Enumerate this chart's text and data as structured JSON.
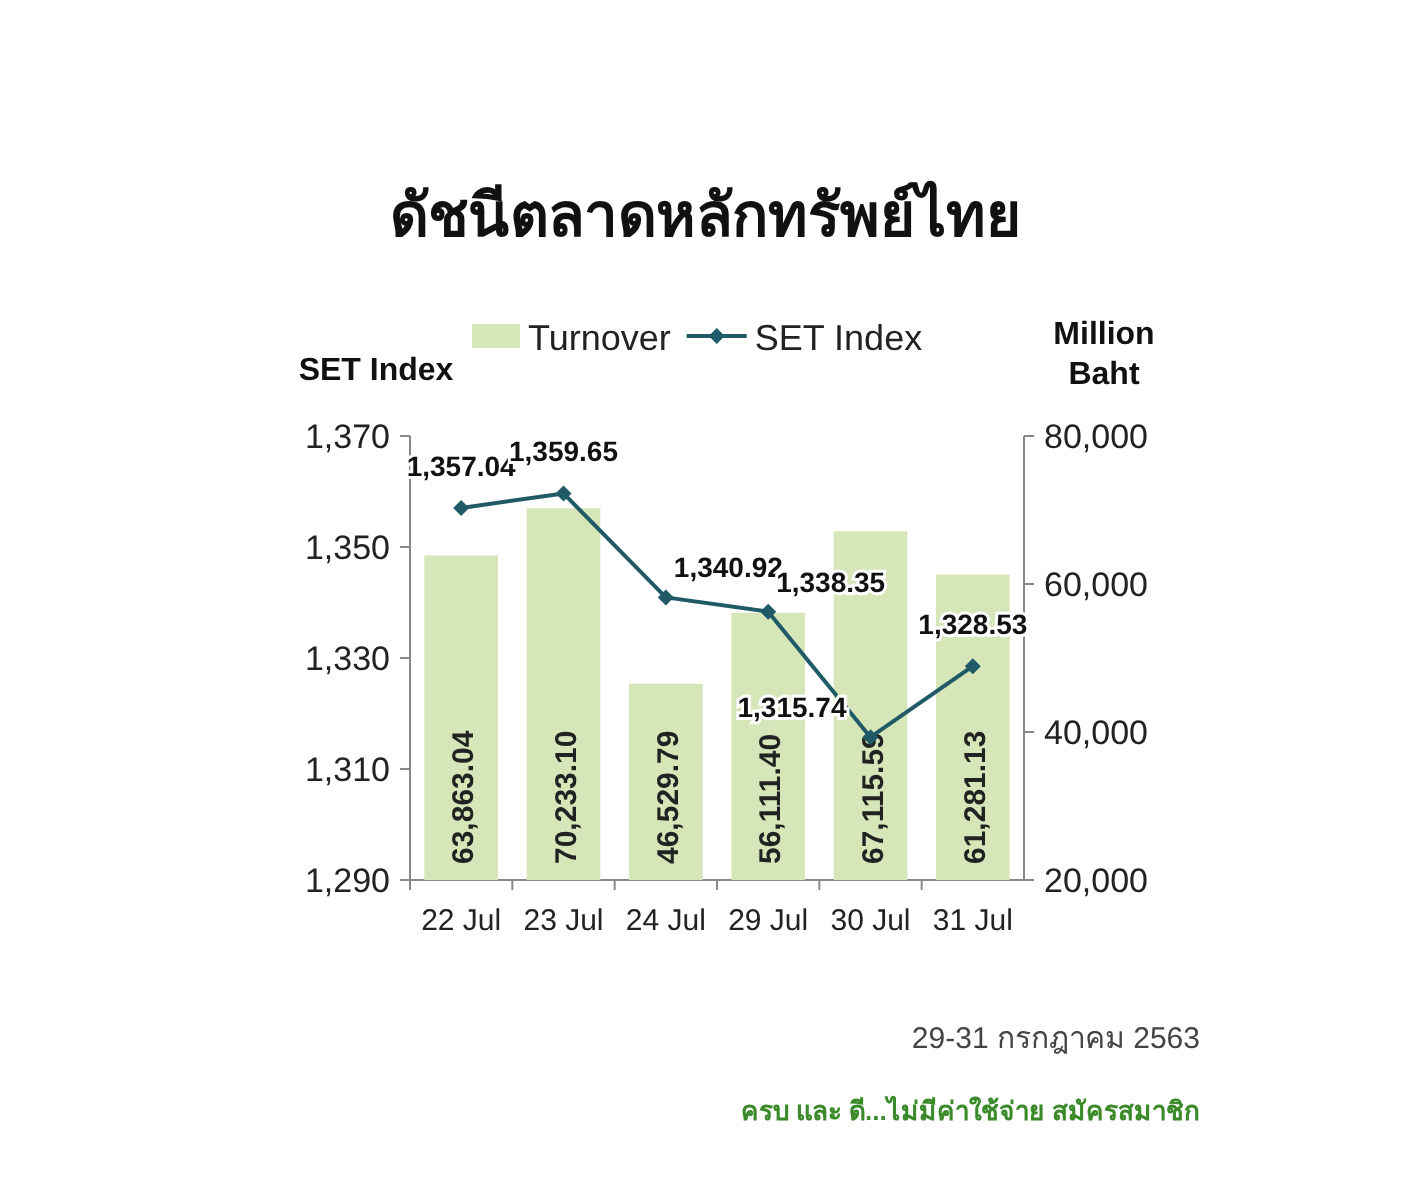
{
  "chart_data": {
    "type": "bar",
    "title": "ดัชนีตลาดหลักทรัพย์ไทย",
    "ylabel": "SET Index",
    "y2label": "Million Baht",
    "categories": [
      "22 Jul",
      "23 Jul",
      "24 Jul",
      "29 Jul",
      "30 Jul",
      "31 Jul"
    ],
    "series": [
      {
        "name": "Turnover",
        "type": "bar",
        "axis": "y2",
        "color": "#d6e6b8",
        "values": [
          63863.04,
          70233.1,
          46529.79,
          56111.4,
          67115.59,
          61281.13
        ],
        "value_labels": [
          "63,863.04",
          "70,233.10",
          "46,529.79",
          "56,111.40",
          "67,115.59",
          "61,281.13"
        ]
      },
      {
        "name": "SET Index",
        "type": "line",
        "axis": "y",
        "color": "#1f5a66",
        "marker": "diamond",
        "values": [
          1357.04,
          1359.65,
          1340.92,
          1338.35,
          1315.74,
          1328.53
        ],
        "value_labels": [
          "1,357.04",
          "1,359.65",
          "1,340.92",
          "1,338.35",
          "1,315.74",
          "1,328.53"
        ]
      }
    ],
    "ylim": [
      1290,
      1370
    ],
    "yticks": [
      {
        "value": 1290,
        "label": "1,290"
      },
      {
        "value": 1310,
        "label": "1,310"
      },
      {
        "value": 1330,
        "label": "1,330"
      },
      {
        "value": 1350,
        "label": "1,350"
      },
      {
        "value": 1370,
        "label": "1,370"
      }
    ],
    "y2lim": [
      20000,
      80000
    ],
    "y2ticks": [
      {
        "value": 20000,
        "label": "20,000"
      },
      {
        "value": 40000,
        "label": "40,000"
      },
      {
        "value": 60000,
        "label": "60,000"
      },
      {
        "value": 80000,
        "label": "80,000"
      }
    ],
    "legend": "top",
    "grid": false,
    "annotations": [
      "29-31 กรกฎาคม 2563",
      "ครบ และ ดี...ไม่มีค่าใช้จ่าย สมัครสมาชิก"
    ]
  }
}
